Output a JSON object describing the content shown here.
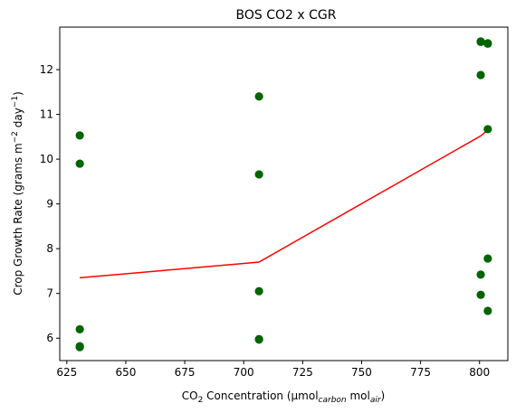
{
  "chart_data": {
    "type": "scatter",
    "title": "BOS CO2 x CGR",
    "xlabel": {
      "prefix": "CO",
      "prefix_sub": "2",
      "main": " Concentration (µmol",
      "sub1": "carbon",
      "mid": " mol",
      "sub2": "air",
      "suffix": ")"
    },
    "ylabel": {
      "main": "Crop Growth Rate (grams m",
      "sup1": "−2",
      "mid": " day",
      "sup2": "−1",
      "suffix": ")"
    },
    "xlim": [
      622,
      812
    ],
    "ylim": [
      5.5,
      12.95
    ],
    "xticks": [
      625,
      650,
      675,
      700,
      725,
      750,
      775,
      800
    ],
    "yticks": [
      6,
      7,
      8,
      9,
      10,
      11,
      12
    ],
    "grid": false,
    "series": [
      {
        "kind": "points",
        "color": "#006400",
        "points": [
          [
            630.5,
            10.53
          ],
          [
            630.5,
            9.9
          ],
          [
            630.5,
            6.2
          ],
          [
            630.5,
            5.82
          ],
          [
            630.5,
            5.8
          ],
          [
            706.5,
            11.4
          ],
          [
            706.5,
            9.66
          ],
          [
            706.5,
            7.05
          ],
          [
            706.5,
            5.98
          ],
          [
            706.5,
            5.97
          ],
          [
            800.5,
            12.63
          ],
          [
            800.5,
            12.62
          ],
          [
            800.5,
            11.88
          ],
          [
            800.5,
            7.42
          ],
          [
            800.5,
            6.97
          ],
          [
            803.5,
            12.59
          ],
          [
            803.5,
            12.58
          ],
          [
            803.5,
            10.67
          ],
          [
            803.5,
            7.78
          ],
          [
            803.5,
            6.61
          ]
        ]
      },
      {
        "kind": "line",
        "color": "#ff0000",
        "points": [
          [
            630.5,
            7.35
          ],
          [
            706.5,
            7.7
          ],
          [
            800.5,
            10.52
          ],
          [
            803.5,
            10.65
          ]
        ]
      }
    ]
  }
}
